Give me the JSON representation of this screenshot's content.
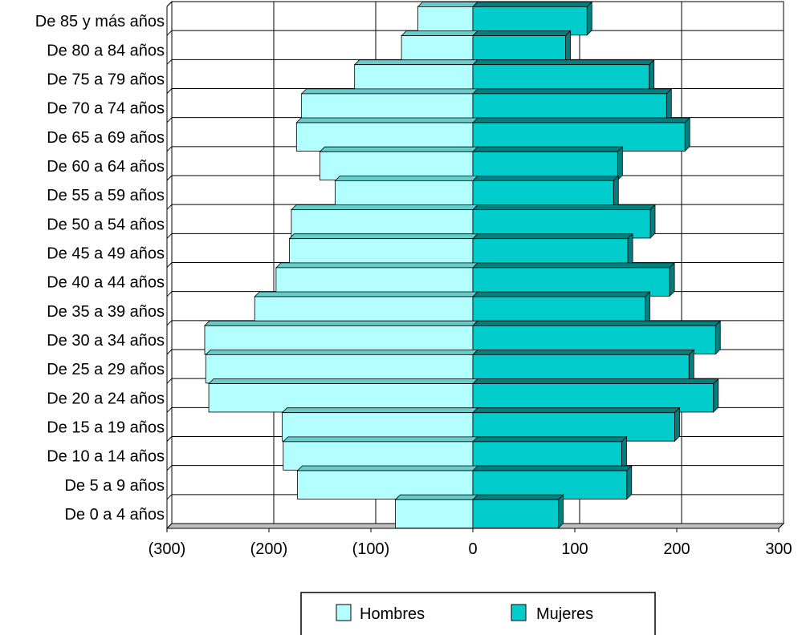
{
  "chart_data": {
    "type": "bar",
    "orientation": "horizontal",
    "categories": [
      "De 0 a 4 años",
      "De 5 a 9 años",
      "De 10 a 14 años",
      "De 15 a 19 años",
      "De 20 a 24 años",
      "De 25 a 29 años",
      "De 30 a 34 años",
      "De 35 a 39 años",
      "De 40 a 44 años",
      "De 45 a 49 años",
      "De 50 a 54 años",
      "De 55 a 59 años",
      "De 60 a 64 años",
      "De 65 a 69 años",
      "De 70 a 74 años",
      "De 75 a 79 años",
      "De 80 a 84 años",
      "De 85 y más años"
    ],
    "series": [
      {
        "name": "Hombres",
        "color": "#B3FFFF",
        "side_color": "#66CCCC",
        "values": [
          -76,
          -172,
          -186,
          -187,
          -259,
          -262,
          -263,
          -214,
          -193,
          -180,
          -178,
          -135,
          -150,
          -173,
          -168,
          -116,
          -70,
          -54
        ]
      },
      {
        "name": "Mujeres",
        "color": "#00CCCC",
        "side_color": "#008080",
        "values": [
          84,
          151,
          146,
          198,
          236,
          212,
          238,
          169,
          193,
          152,
          174,
          138,
          142,
          208,
          190,
          173,
          91,
          112
        ]
      }
    ],
    "xlim": [
      -300,
      300
    ],
    "xticks": [
      -300,
      -200,
      -100,
      0,
      100,
      200,
      300
    ],
    "xtick_labels": [
      "(300)",
      "(200)",
      "(100)",
      "0",
      "100",
      "200",
      "300"
    ],
    "grid": true,
    "legend_position": "bottom"
  }
}
